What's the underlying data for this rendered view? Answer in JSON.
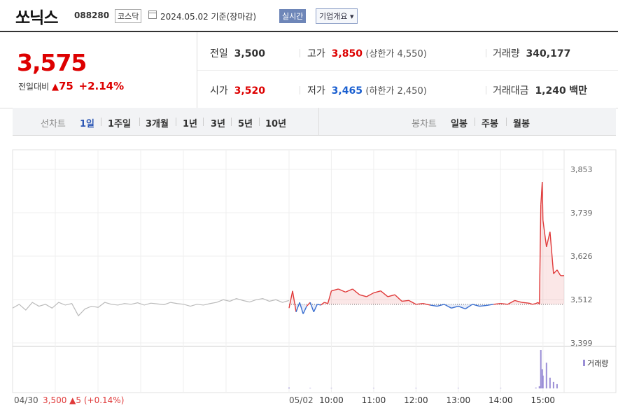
{
  "header": {
    "name": "쏘닉스",
    "code": "088280",
    "market": "코스닥",
    "date": "2024.05.02 기준(장마감)",
    "realtime_label": "실시간",
    "company_label": "기업개요 ▾"
  },
  "quote": {
    "price": "3,575",
    "change_label": "전일대비",
    "change_arrow": "▲",
    "change": "75",
    "change_pct": "+2.14%",
    "prev_label": "전일",
    "prev": "3,500",
    "open_label": "시가",
    "open": "3,520",
    "high_label": "고가",
    "high": "3,850",
    "upper_limit": "(상한가 4,550)",
    "low_label": "저가",
    "low": "3,465",
    "lower_limit": "(하한가 2,450)",
    "volume_label": "거래량",
    "volume": "340,177",
    "amount_label": "거래대금",
    "amount": "1,240",
    "amount_unit": "백만"
  },
  "tabs": {
    "line_label": "선차트",
    "line_items": [
      "1일",
      "1주일",
      "3개월",
      "1년",
      "3년",
      "5년",
      "10년"
    ],
    "selected": "1일",
    "candle_label": "봉차트",
    "candle_items": [
      "일봉",
      "주봉",
      "월봉"
    ]
  },
  "chart_data": {
    "type": "line",
    "y_ticks": [
      "3,853",
      "3,739",
      "3,626",
      "3,512",
      "3,399"
    ],
    "ylim": [
      3399,
      3853
    ],
    "prev_close": 3500,
    "x_ticks": [
      "04/30",
      "05/02",
      "10:00",
      "11:00",
      "12:00",
      "13:00",
      "14:00",
      "15:00"
    ],
    "prev_day_note": "3,500 ▲5 (+0.14%)",
    "volume_legend": "거래량",
    "colors": {
      "up": "#e03a3a",
      "down": "#3a6fd0",
      "prev": "#bbbbbb",
      "volume": "#9b8fd6"
    },
    "prev_day_series": {
      "name": "04/30",
      "values": [
        3490,
        3500,
        3485,
        3505,
        3495,
        3500,
        3490,
        3505,
        3498,
        3502,
        3470,
        3488,
        3495,
        3492,
        3505,
        3500,
        3498,
        3502,
        3500,
        3504,
        3498,
        3503,
        3501,
        3499,
        3505,
        3502,
        3500,
        3495,
        3500,
        3498,
        3502,
        3505,
        3512,
        3508,
        3515,
        3510,
        3506,
        3512,
        3515,
        3508,
        3512,
        3505,
        3510
      ]
    },
    "series": [
      {
        "name": "05/02",
        "x": [
          "09:00",
          "09:05",
          "09:10",
          "09:15",
          "09:20",
          "09:25",
          "09:30",
          "09:35",
          "09:40",
          "09:45",
          "09:50",
          "09:55",
          "10:00",
          "10:10",
          "10:20",
          "10:30",
          "10:40",
          "10:50",
          "11:00",
          "11:10",
          "11:20",
          "11:30",
          "11:40",
          "11:50",
          "12:00",
          "12:10",
          "12:20",
          "12:30",
          "12:40",
          "12:50",
          "13:00",
          "13:10",
          "13:20",
          "13:30",
          "13:40",
          "13:50",
          "14:00",
          "14:10",
          "14:20",
          "14:30",
          "14:40",
          "14:45",
          "14:50",
          "14:53",
          "14:55",
          "14:57",
          "14:59",
          "15:00",
          "15:05",
          "15:10",
          "15:15",
          "15:20",
          "15:25",
          "15:30"
        ],
        "values": [
          3490,
          3535,
          3480,
          3505,
          3475,
          3495,
          3505,
          3480,
          3500,
          3498,
          3505,
          3502,
          3535,
          3540,
          3532,
          3540,
          3525,
          3520,
          3530,
          3535,
          3520,
          3525,
          3508,
          3510,
          3500,
          3502,
          3498,
          3495,
          3500,
          3490,
          3495,
          3488,
          3500,
          3495,
          3497,
          3500,
          3502,
          3500,
          3510,
          3505,
          3503,
          3500,
          3502,
          3505,
          3500,
          3760,
          3820,
          3720,
          3650,
          3690,
          3580,
          3590,
          3575,
          3575
        ]
      }
    ],
    "volume": {
      "x": [
        "09:00",
        "09:30",
        "10:00",
        "11:00",
        "12:00",
        "13:00",
        "14:00",
        "14:50",
        "14:55",
        "14:57",
        "14:59",
        "15:00",
        "15:05",
        "15:10",
        "15:15",
        "15:20"
      ],
      "values": [
        2,
        1,
        1,
        1,
        1,
        1,
        1,
        2,
        5,
        90,
        45,
        30,
        60,
        25,
        15,
        10
      ]
    }
  }
}
